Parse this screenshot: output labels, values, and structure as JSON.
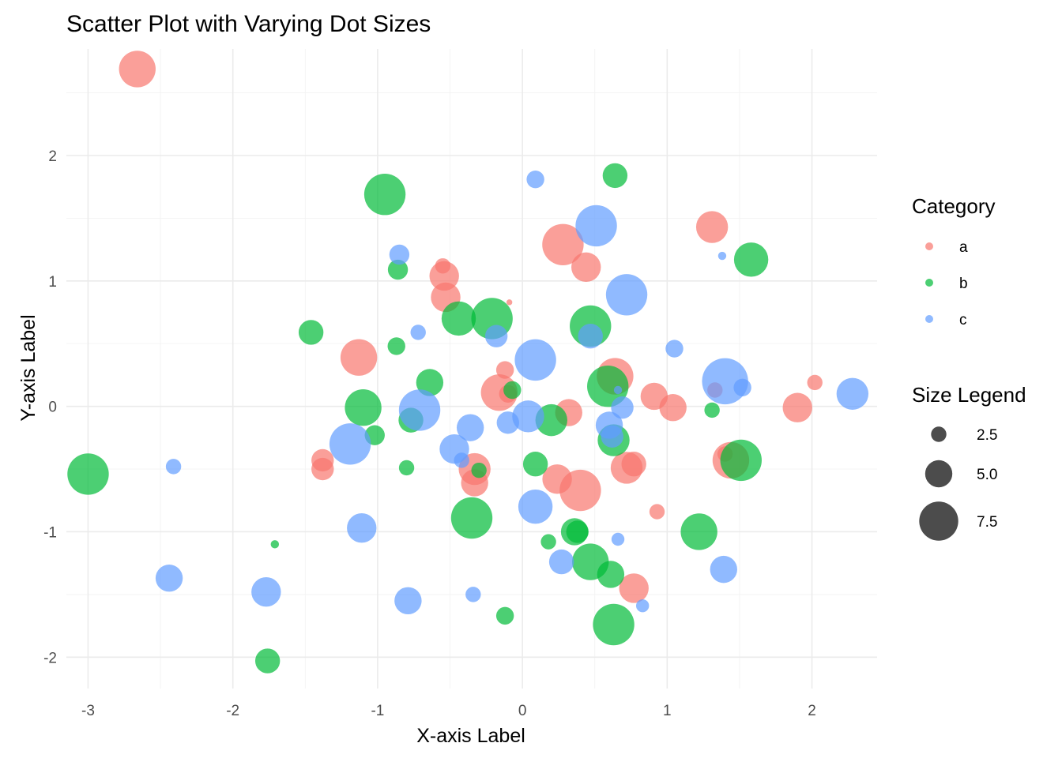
{
  "chart_data": {
    "type": "scatter",
    "title": "Scatter Plot with Varying Dot Sizes",
    "xlabel": "X-axis Label",
    "ylabel": "Y-axis Label",
    "xlim": [
      -3.15,
      2.45
    ],
    "ylim": [
      -2.25,
      2.85
    ],
    "x_ticks": [
      -3,
      -2,
      -1,
      0,
      1,
      2
    ],
    "y_ticks": [
      -2,
      -1,
      0,
      1,
      2
    ],
    "x_tick_labels": [
      "-3",
      "-2",
      "-1",
      "0",
      "1",
      "2"
    ],
    "y_tick_labels": [
      "-2",
      "-1",
      "0",
      "1",
      "2"
    ],
    "grid": true,
    "point_alpha": 0.7,
    "color_legend": {
      "title": "Category",
      "position": "right",
      "entries": [
        {
          "label": "a",
          "color": "#F8766D"
        },
        {
          "label": "b",
          "color": "#00BA38"
        },
        {
          "label": "c",
          "color": "#619CFF"
        }
      ]
    },
    "size_legend": {
      "title": "Size Legend",
      "position": "right",
      "breaks": [
        {
          "label": "2.5",
          "value": 2.5
        },
        {
          "label": "5.0",
          "value": 5.0
        },
        {
          "label": "7.5",
          "value": 7.5
        }
      ]
    },
    "series": [
      {
        "category": "a",
        "points": [
          {
            "x": -2.66,
            "y": 2.69,
            "size": 7.0
          },
          {
            "x": -0.55,
            "y": 1.12,
            "size": 2.5
          },
          {
            "x": -0.54,
            "y": 1.04,
            "size": 5.5
          },
          {
            "x": -0.53,
            "y": 0.87,
            "size": 5.5
          },
          {
            "x": 0.28,
            "y": 1.29,
            "size": 8.0
          },
          {
            "x": 0.44,
            "y": 1.11,
            "size": 5.5
          },
          {
            "x": 1.31,
            "y": 1.43,
            "size": 6.0
          },
          {
            "x": -0.09,
            "y": 0.83,
            "size": 0.5
          },
          {
            "x": -1.13,
            "y": 0.39,
            "size": 7.0
          },
          {
            "x": -0.12,
            "y": 0.29,
            "size": 3.0
          },
          {
            "x": -0.16,
            "y": 0.11,
            "size": 7.0
          },
          {
            "x": -0.1,
            "y": 0.1,
            "size": 3.0
          },
          {
            "x": 0.64,
            "y": 0.24,
            "size": 7.0
          },
          {
            "x": 0.91,
            "y": 0.08,
            "size": 5.0
          },
          {
            "x": 1.04,
            "y": -0.01,
            "size": 5.0
          },
          {
            "x": 0.32,
            "y": -0.05,
            "size": 5.0
          },
          {
            "x": 1.9,
            "y": -0.01,
            "size": 5.5
          },
          {
            "x": 2.02,
            "y": 0.19,
            "size": 2.5
          },
          {
            "x": 1.33,
            "y": 0.13,
            "size": 2.5
          },
          {
            "x": -1.38,
            "y": -0.43,
            "size": 4.0
          },
          {
            "x": -1.38,
            "y": -0.5,
            "size": 4.0
          },
          {
            "x": -0.33,
            "y": -0.5,
            "size": 6.0
          },
          {
            "x": -0.33,
            "y": -0.61,
            "size": 5.0
          },
          {
            "x": 0.24,
            "y": -0.58,
            "size": 5.5
          },
          {
            "x": 0.4,
            "y": -0.67,
            "size": 8.0
          },
          {
            "x": 0.72,
            "y": -0.49,
            "size": 6.0
          },
          {
            "x": 0.77,
            "y": -0.46,
            "size": 4.5
          },
          {
            "x": 1.4,
            "y": -0.38,
            "size": 2.5
          },
          {
            "x": 1.44,
            "y": -0.43,
            "size": 7.0
          },
          {
            "x": 0.93,
            "y": -0.84,
            "size": 2.5
          },
          {
            "x": 0.77,
            "y": -1.45,
            "size": 5.5
          }
        ]
      },
      {
        "category": "b",
        "points": [
          {
            "x": -0.95,
            "y": 1.69,
            "size": 8.0
          },
          {
            "x": 0.64,
            "y": 1.84,
            "size": 4.5
          },
          {
            "x": 1.58,
            "y": 1.17,
            "size": 6.5
          },
          {
            "x": -0.86,
            "y": 1.09,
            "size": 3.5
          },
          {
            "x": -1.46,
            "y": 0.59,
            "size": 4.5
          },
          {
            "x": -0.87,
            "y": 0.48,
            "size": 3.0
          },
          {
            "x": -0.44,
            "y": 0.7,
            "size": 6.5
          },
          {
            "x": -0.21,
            "y": 0.7,
            "size": 8.0
          },
          {
            "x": 0.47,
            "y": 0.64,
            "size": 8.0
          },
          {
            "x": -0.64,
            "y": 0.19,
            "size": 5.0
          },
          {
            "x": -0.07,
            "y": 0.13,
            "size": 3.0
          },
          {
            "x": 0.59,
            "y": 0.16,
            "size": 8.0
          },
          {
            "x": -1.1,
            "y": -0.01,
            "size": 7.0
          },
          {
            "x": -1.02,
            "y": -0.23,
            "size": 3.5
          },
          {
            "x": -0.77,
            "y": -0.11,
            "size": 4.5
          },
          {
            "x": 0.2,
            "y": -0.11,
            "size": 6.0
          },
          {
            "x": 1.31,
            "y": -0.03,
            "size": 2.5
          },
          {
            "x": -0.8,
            "y": -0.49,
            "size": 2.5
          },
          {
            "x": -0.3,
            "y": -0.51,
            "size": 2.5
          },
          {
            "x": 0.09,
            "y": -0.46,
            "size": 4.5
          },
          {
            "x": 0.63,
            "y": -0.27,
            "size": 6.0
          },
          {
            "x": 1.51,
            "y": -0.43,
            "size": 8.0
          },
          {
            "x": -3.0,
            "y": -0.54,
            "size": 8.0
          },
          {
            "x": -0.35,
            "y": -0.89,
            "size": 8.0
          },
          {
            "x": 0.36,
            "y": -1.0,
            "size": 5.0
          },
          {
            "x": 0.38,
            "y": -1.0,
            "size": 4.0
          },
          {
            "x": 1.22,
            "y": -1.0,
            "size": 7.0
          },
          {
            "x": 0.18,
            "y": -1.08,
            "size": 2.5
          },
          {
            "x": -1.71,
            "y": -1.1,
            "size": 1.0
          },
          {
            "x": 0.47,
            "y": -1.24,
            "size": 7.0
          },
          {
            "x": 0.61,
            "y": -1.34,
            "size": 5.0
          },
          {
            "x": 0.63,
            "y": -1.74,
            "size": 8.0
          },
          {
            "x": -0.12,
            "y": -1.67,
            "size": 3.0
          },
          {
            "x": -1.76,
            "y": -2.03,
            "size": 4.5
          }
        ]
      },
      {
        "category": "c",
        "points": [
          {
            "x": 0.09,
            "y": 1.81,
            "size": 3.0
          },
          {
            "x": 0.51,
            "y": 1.44,
            "size": 8.0
          },
          {
            "x": -0.85,
            "y": 1.21,
            "size": 3.5
          },
          {
            "x": 1.38,
            "y": 1.2,
            "size": 1.0
          },
          {
            "x": 0.72,
            "y": 0.89,
            "size": 8.0
          },
          {
            "x": -0.72,
            "y": 0.59,
            "size": 2.5
          },
          {
            "x": -0.18,
            "y": 0.56,
            "size": 4.0
          },
          {
            "x": 0.47,
            "y": 0.56,
            "size": 4.5
          },
          {
            "x": 1.05,
            "y": 0.46,
            "size": 3.0
          },
          {
            "x": 0.09,
            "y": 0.37,
            "size": 8.0
          },
          {
            "x": 1.4,
            "y": 0.2,
            "size": 9.0
          },
          {
            "x": 1.52,
            "y": 0.15,
            "size": 3.0
          },
          {
            "x": 0.66,
            "y": 0.13,
            "size": 1.0
          },
          {
            "x": 2.28,
            "y": 0.1,
            "size": 6.0
          },
          {
            "x": -0.71,
            "y": -0.03,
            "size": 8.0
          },
          {
            "x": 0.04,
            "y": -0.08,
            "size": 6.0
          },
          {
            "x": -0.1,
            "y": -0.13,
            "size": 4.0
          },
          {
            "x": 0.69,
            "y": -0.01,
            "size": 4.0
          },
          {
            "x": 0.6,
            "y": -0.15,
            "size": 5.0
          },
          {
            "x": 0.62,
            "y": -0.24,
            "size": 4.0
          },
          {
            "x": -0.36,
            "y": -0.17,
            "size": 5.0
          },
          {
            "x": -1.19,
            "y": -0.3,
            "size": 8.0
          },
          {
            "x": -0.47,
            "y": -0.34,
            "size": 5.5
          },
          {
            "x": -0.42,
            "y": -0.43,
            "size": 2.5
          },
          {
            "x": -2.41,
            "y": -0.48,
            "size": 2.5
          },
          {
            "x": 0.09,
            "y": -0.8,
            "size": 6.5
          },
          {
            "x": -1.11,
            "y": -0.97,
            "size": 5.5
          },
          {
            "x": 0.66,
            "y": -1.06,
            "size": 2.0
          },
          {
            "x": 0.27,
            "y": -1.24,
            "size": 4.5
          },
          {
            "x": 1.39,
            "y": -1.3,
            "size": 5.0
          },
          {
            "x": -2.44,
            "y": -1.37,
            "size": 5.0
          },
          {
            "x": -1.77,
            "y": -1.48,
            "size": 5.5
          },
          {
            "x": -0.34,
            "y": -1.5,
            "size": 2.5
          },
          {
            "x": -0.79,
            "y": -1.55,
            "size": 5.0
          },
          {
            "x": 0.83,
            "y": -1.59,
            "size": 2.0
          }
        ]
      }
    ]
  }
}
